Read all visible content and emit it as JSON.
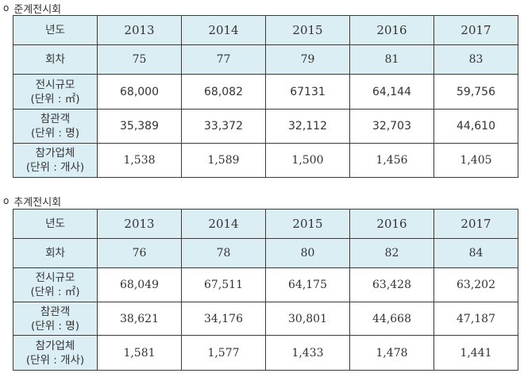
{
  "sections": [
    {
      "title": "준계전시회",
      "bullet": "o",
      "header_label": "년도",
      "years": [
        "2013",
        "2014",
        "2015",
        "2016",
        "2017"
      ],
      "rows": [
        {
          "label": "회차",
          "sub": "",
          "values": [
            "75",
            "77",
            "79",
            "81",
            "83"
          ]
        },
        {
          "label": "전시규모",
          "sub": "(단위 : ㎡)",
          "values": [
            "68,000",
            "68,082",
            "67131",
            "64,144",
            "59,756"
          ]
        },
        {
          "label": "참관객",
          "sub": "(단위 : 명)",
          "values": [
            "35,389",
            "33,372",
            "32,112",
            "32,703",
            "44,610"
          ]
        },
        {
          "label": "참가업체",
          "sub": "(단위 : 개사)",
          "values": [
            "1,538",
            "1,589",
            "1,500",
            "1,456",
            "1,405"
          ]
        }
      ]
    },
    {
      "title": "추계전시회",
      "bullet": "o",
      "header_label": "년도",
      "years": [
        "2013",
        "2014",
        "2015",
        "2016",
        "2017"
      ],
      "rows": [
        {
          "label": "회차",
          "sub": "",
          "values": [
            "76",
            "78",
            "80",
            "82",
            "84"
          ]
        },
        {
          "label": "전시규모",
          "sub": "(단위 : ㎡)",
          "values": [
            "68,049",
            "67,511",
            "64,175",
            "63,428",
            "63,202"
          ]
        },
        {
          "label": "참관객",
          "sub": "(단위 : 명)",
          "values": [
            "38,621",
            "34,176",
            "30,801",
            "44,668",
            "47,187"
          ]
        },
        {
          "label": "참가업체",
          "sub": "(단위 : 개사)",
          "values": [
            "1,581",
            "1,577",
            "1,433",
            "1,478",
            "1,441"
          ]
        }
      ]
    }
  ]
}
